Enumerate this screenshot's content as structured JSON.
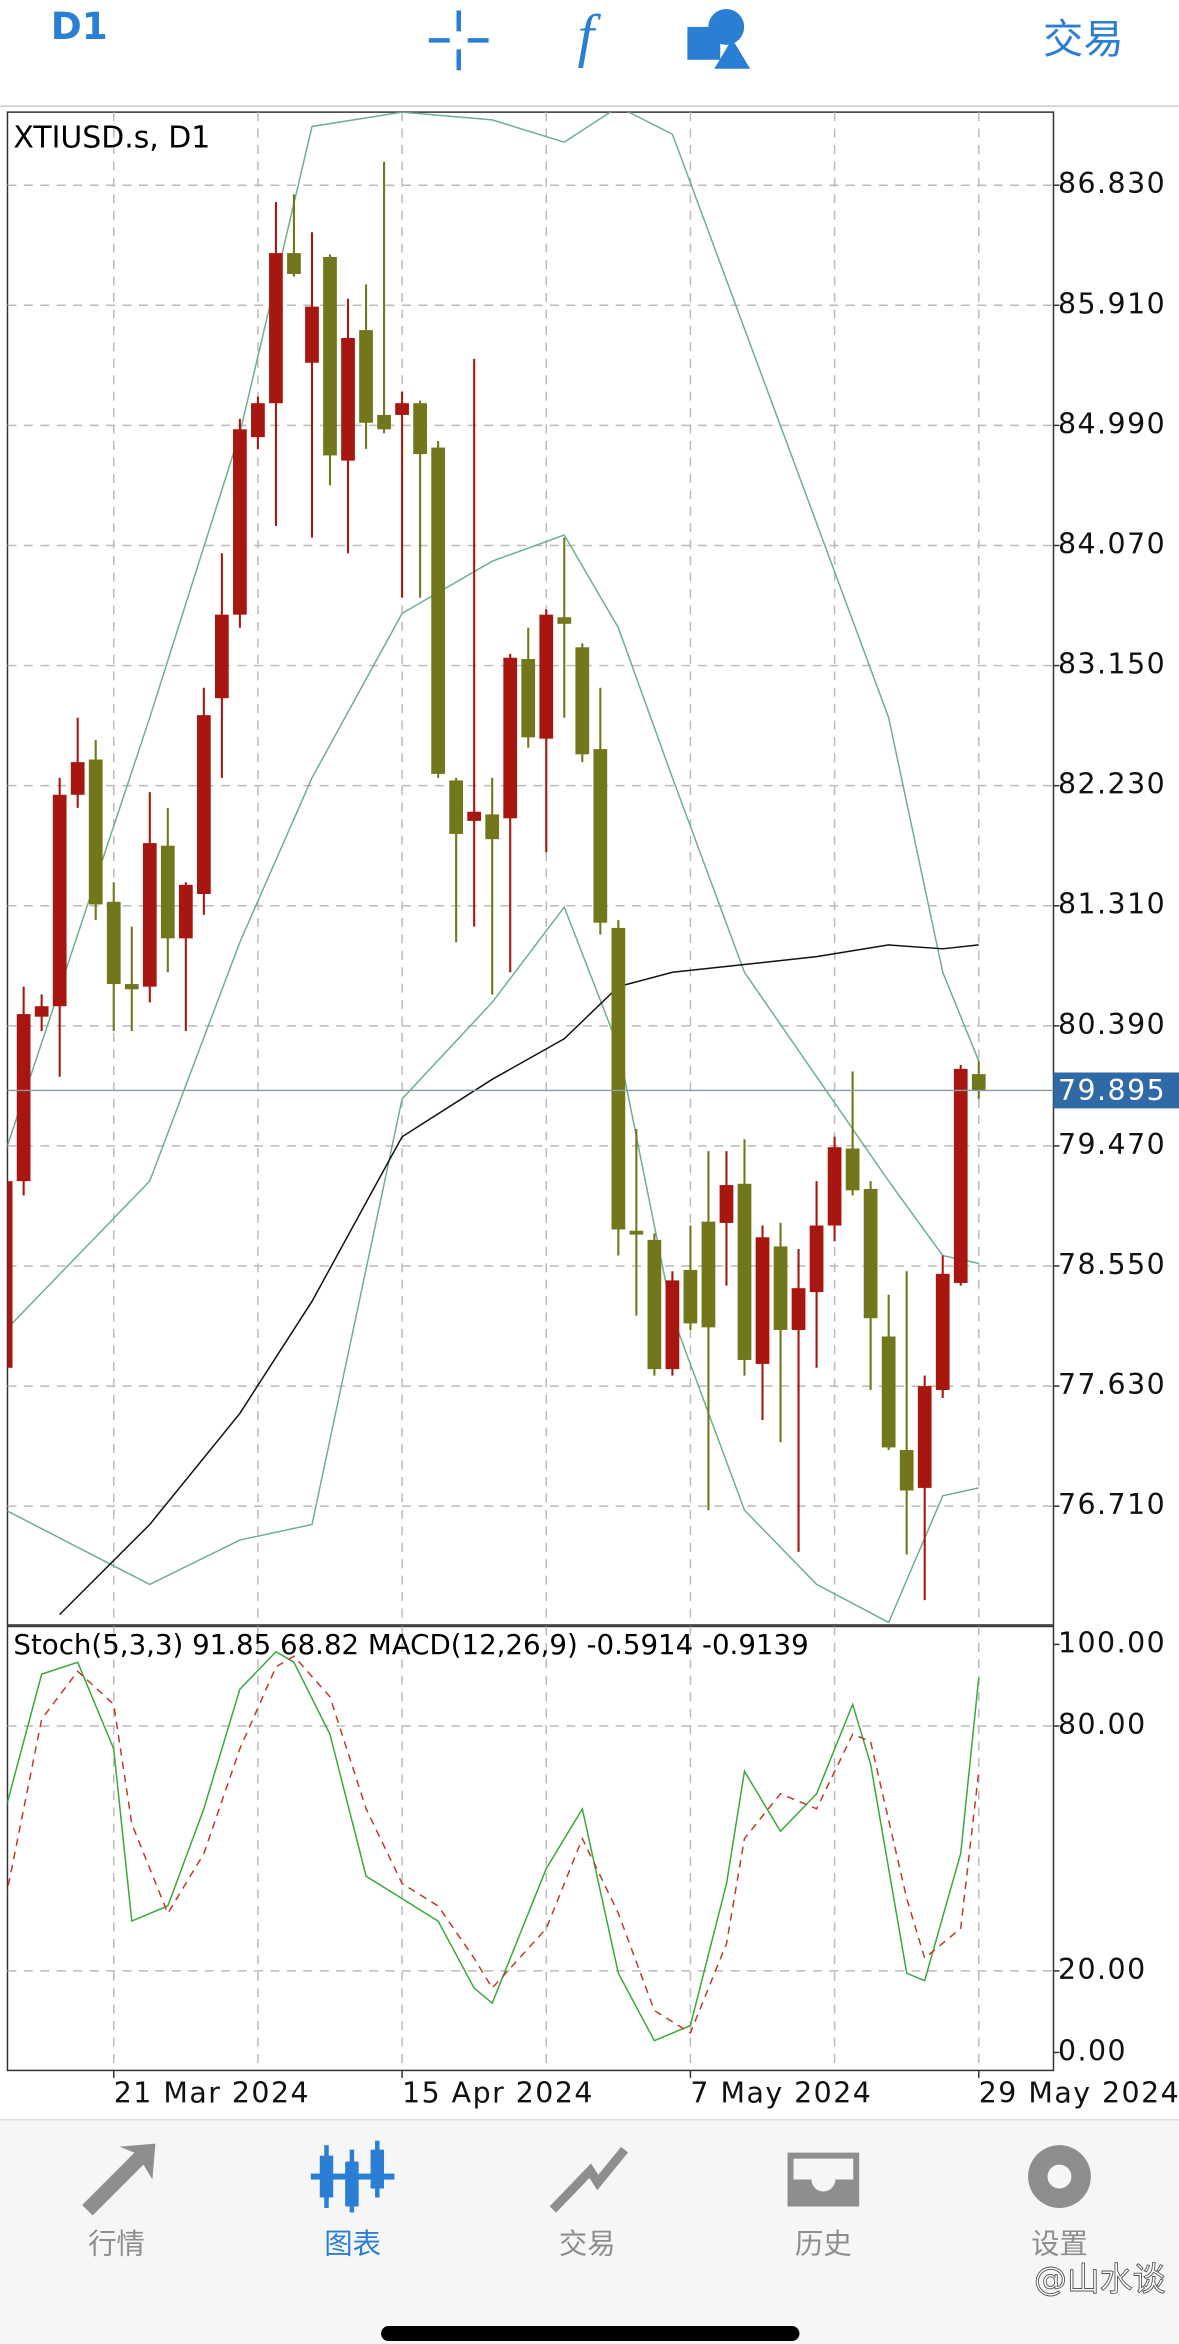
{
  "toolbar": {
    "timeframe": "D1",
    "action": "交易"
  },
  "chart_data": [
    {
      "type": "candlestick",
      "title": "XTIUSD.s, D1",
      "categories": [
        null,
        null,
        null,
        null,
        null,
        null,
        "21 Mar 2024",
        null,
        null,
        null,
        null,
        null,
        null,
        null,
        null,
        null,
        null,
        null,
        null,
        null,
        null,
        null,
        "15 Apr 2024",
        null,
        null,
        null,
        null,
        null,
        null,
        null,
        null,
        null,
        null,
        null,
        null,
        null,
        null,
        null,
        "7 May 2024",
        null,
        null,
        null,
        null,
        null,
        null,
        null,
        null,
        null,
        null,
        null,
        null,
        null,
        null,
        null,
        "29 May 2024"
      ],
      "open": [
        77.77,
        79.2,
        80.46,
        80.54,
        82.16,
        82.43,
        81.34,
        80.71,
        80.69,
        81.77,
        81.06,
        81.4,
        82.9,
        83.54,
        84.9,
        85.16,
        86.31,
        85.47,
        86.28,
        84.72,
        85.72,
        85.07,
        85.07,
        85.16,
        84.82,
        82.27,
        81.96,
        82.01,
        81.98,
        83.2,
        82.59,
        83.52,
        83.29,
        82.51,
        81.14,
        78.82,
        78.75,
        77.76,
        78.52,
        78.89,
        78.88,
        79.18,
        77.8,
        78.7,
        78.06,
        78.35,
        78.86,
        79.45,
        79.14,
        78.01,
        77.14,
        76.85,
        77.6,
        78.42,
        80.02
      ],
      "high": [
        79.31,
        80.69,
        80.63,
        82.29,
        82.75,
        82.58,
        81.49,
        81.15,
        82.18,
        82.06,
        81.49,
        82.98,
        84.01,
        85.04,
        85.21,
        86.7,
        86.76,
        86.47,
        86.3,
        85.96,
        86.07,
        87.01,
        85.25,
        85.18,
        84.87,
        82.29,
        85.5,
        82.29,
        83.24,
        83.44,
        83.58,
        84.13,
        83.32,
        82.98,
        81.2,
        79.6,
        78.8,
        78.51,
        78.86,
        79.43,
        79.43,
        79.52,
        78.86,
        78.88,
        78.68,
        79.2,
        79.54,
        80.04,
        79.2,
        78.33,
        78.51,
        77.71,
        78.63,
        80.09,
        80.12
      ],
      "low": [
        77.65,
        79.09,
        80.35,
        80.0,
        82.06,
        81.2,
        80.35,
        80.35,
        80.57,
        80.8,
        80.35,
        81.24,
        82.29,
        83.44,
        84.81,
        84.22,
        86.13,
        84.13,
        84.53,
        84.01,
        84.81,
        84.93,
        83.67,
        83.67,
        82.29,
        81.03,
        81.15,
        80.63,
        80.8,
        82.52,
        81.72,
        82.75,
        82.41,
        81.09,
        78.63,
        78.17,
        77.71,
        77.71,
        78.06,
        76.68,
        78.4,
        77.71,
        77.37,
        77.2,
        76.36,
        77.77,
        78.74,
        79.09,
        77.6,
        77.14,
        76.34,
        75.99,
        77.54,
        78.4,
        79.83
      ],
      "close": [
        79.2,
        80.48,
        80.54,
        82.16,
        82.41,
        81.32,
        80.71,
        80.67,
        81.79,
        81.06,
        81.47,
        82.77,
        83.54,
        84.96,
        85.16,
        86.31,
        86.15,
        85.9,
        84.76,
        85.66,
        85.01,
        84.96,
        85.16,
        84.77,
        82.32,
        81.86,
        82.03,
        81.82,
        83.21,
        82.6,
        83.54,
        83.47,
        82.47,
        81.18,
        78.83,
        78.79,
        77.76,
        78.44,
        78.11,
        78.08,
        79.17,
        77.83,
        78.77,
        78.06,
        78.38,
        78.86,
        79.46,
        79.13,
        78.15,
        77.16,
        76.83,
        77.63,
        78.49,
        80.06,
        79.895
      ],
      "up_color": "#a8170f",
      "down_color": "#72771b",
      "ylim": [
        75.8,
        87.39
      ],
      "yticks": [
        {
          "value": 86.83,
          "label": "86.830"
        },
        {
          "value": 85.91,
          "label": "85.910"
        },
        {
          "value": 84.99,
          "label": "84.990"
        },
        {
          "value": 84.07,
          "label": "84.070"
        },
        {
          "value": 83.15,
          "label": "83.150"
        },
        {
          "value": 82.23,
          "label": "82.230"
        },
        {
          "value": 81.31,
          "label": "81.310"
        },
        {
          "value": 80.39,
          "label": "80.390"
        },
        {
          "value": 79.47,
          "label": "79.470"
        },
        {
          "value": 78.55,
          "label": "78.550"
        },
        {
          "value": 77.63,
          "label": "77.630"
        },
        {
          "value": 76.71,
          "label": "76.710"
        }
      ],
      "grid": true,
      "current_price": {
        "value": 79.895,
        "label": "79.895"
      },
      "series": [
        {
          "color": "#6fae8f",
          "x": [
            0,
            8,
            13,
            17,
            22,
            27,
            31,
            34,
            37,
            41,
            45,
            49,
            52,
            54
          ],
          "values": [
            79.43,
            82.75,
            84.93,
            87.28,
            87.39,
            87.33,
            87.16,
            87.43,
            87.22,
            85.73,
            84.24,
            82.75,
            80.8,
            80.12
          ]
        },
        {
          "color": "#6fae8f",
          "x": [
            0,
            8,
            13,
            17,
            22,
            27,
            31,
            34,
            37,
            41,
            45,
            49,
            52,
            54
          ],
          "values": [
            78.06,
            79.2,
            81.03,
            82.29,
            83.55,
            83.95,
            84.15,
            83.44,
            82.29,
            80.8,
            80.0,
            79.2,
            78.63,
            78.57
          ]
        },
        {
          "color": "#6fae8f",
          "x": [
            0,
            8,
            13,
            17,
            22,
            27,
            31,
            34,
            37,
            41,
            45,
            49,
            52,
            54
          ],
          "values": [
            76.68,
            76.11,
            76.45,
            76.57,
            79.83,
            80.57,
            81.3,
            80.23,
            78.17,
            76.68,
            76.11,
            75.82,
            76.79,
            76.85
          ]
        },
        {
          "color": "#111111",
          "x": [
            3,
            8,
            13,
            17,
            22,
            27,
            31,
            34,
            37,
            41,
            45,
            49,
            52,
            54
          ],
          "values": [
            75.88,
            76.57,
            77.42,
            78.28,
            79.54,
            79.98,
            80.29,
            80.69,
            80.8,
            80.86,
            80.92,
            81.01,
            80.98,
            81.01
          ]
        }
      ]
    },
    {
      "type": "line",
      "title": "Stoch(5,3,3) 91.85 68.82 MACD(12,26,9) -0.5914 -0.9139",
      "ylim": [
        -4.4,
        104.4
      ],
      "yticks": [
        {
          "value": 100,
          "label": "100.00"
        },
        {
          "value": 80,
          "label": "80.00"
        },
        {
          "value": 20,
          "label": "20.00"
        },
        {
          "value": 0,
          "label": "0.00"
        }
      ],
      "levels": [
        80,
        20
      ],
      "series": [
        {
          "color": "#3aa83a",
          "dashed": false,
          "x": [
            0,
            2,
            4,
            6,
            7,
            9,
            11,
            13,
            15,
            16,
            18,
            20,
            22,
            24,
            26,
            27,
            30,
            32,
            34,
            36,
            38,
            40,
            41,
            43,
            45,
            47,
            48,
            50,
            51,
            53,
            54
          ],
          "values": [
            59.7,
            92.7,
            95.6,
            74.4,
            32.2,
            35.9,
            59.7,
            89.0,
            98.2,
            95.6,
            78.0,
            43.2,
            37.7,
            32.2,
            15.8,
            12.1,
            45.1,
            59.7,
            19.4,
            2.9,
            6.6,
            41.4,
            68.9,
            54.2,
            63.4,
            85.3,
            70.7,
            19.4,
            17.6,
            48.7,
            91.85
          ]
        },
        {
          "color": "#c0392b",
          "dashed": true,
          "x": [
            0,
            2,
            4,
            6,
            7,
            9,
            11,
            13,
            15,
            16,
            18,
            20,
            22,
            24,
            26,
            27,
            30,
            32,
            34,
            36,
            38,
            40,
            41,
            43,
            45,
            47,
            48,
            50,
            51,
            53,
            54
          ],
          "values": [
            37.7,
            81.7,
            93.4,
            85.3,
            56.0,
            34.1,
            48.7,
            74.4,
            94.5,
            97.1,
            87.2,
            59.7,
            41.4,
            35.9,
            23.1,
            15.8,
            30.4,
            52.4,
            34.1,
            10.3,
            4.8,
            26.7,
            52.4,
            63.4,
            59.7,
            78.0,
            76.2,
            37.7,
            23.1,
            30.4,
            68.82
          ]
        }
      ]
    }
  ],
  "nav": {
    "items": [
      "行情",
      "图表",
      "交易",
      "历史",
      "设置"
    ],
    "active": 1
  },
  "watermark": "@山水谈"
}
